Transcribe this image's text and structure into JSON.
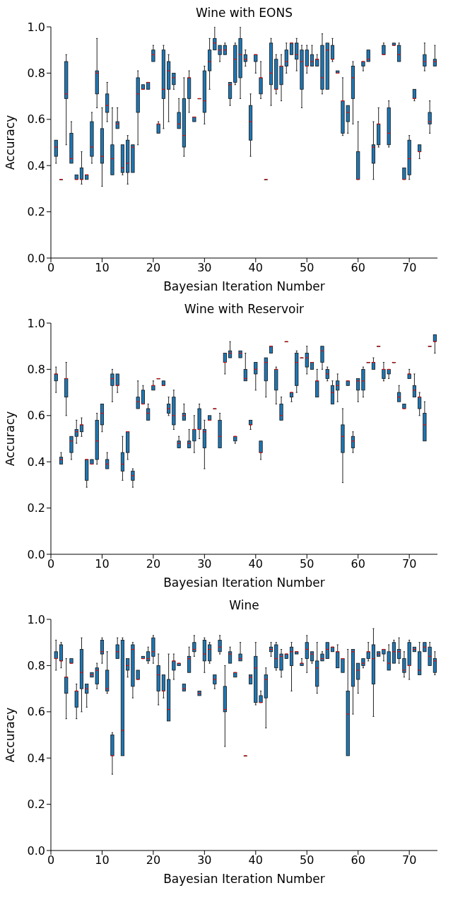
{
  "chart_data": [
    {
      "type": "box",
      "title": "Wine with EONS",
      "xlabel": "Bayesian Iteration Number",
      "ylabel": "Accuracy",
      "color": "#1f77b4",
      "xlim": [
        0,
        75.5
      ],
      "xticks": [
        0,
        10,
        20,
        30,
        40,
        50,
        60,
        70
      ],
      "ylim": [
        0,
        1.0
      ],
      "yticks": [
        {
          "value": 0,
          "label": "0.0"
        },
        {
          "value": 0.2,
          "label": "0.2"
        },
        {
          "value": 0.4,
          "label": "0.4"
        },
        {
          "value": 0.6,
          "label": "0.6"
        },
        {
          "value": 0.8,
          "label": "0.8"
        },
        {
          "value": 1.0,
          "label": "1.0"
        }
      ],
      "x": [
        1,
        2,
        3,
        4,
        5,
        6,
        7,
        8,
        9,
        10,
        11,
        12,
        13,
        14,
        15,
        16,
        17,
        18,
        19,
        20,
        21,
        22,
        23,
        24,
        25,
        26,
        27,
        28,
        29,
        30,
        31,
        32,
        33,
        34,
        35,
        36,
        37,
        38,
        39,
        40,
        41,
        42,
        43,
        44,
        45,
        46,
        47,
        48,
        49,
        50,
        51,
        52,
        53,
        54,
        55,
        56,
        57,
        58,
        59,
        60,
        61,
        62,
        63,
        64,
        65,
        66,
        67,
        68,
        69,
        70,
        71,
        72,
        73,
        74,
        75
      ],
      "boxes": [
        {
          "low": 0.41,
          "q1": 0.44,
          "median": 0.48,
          "q3": 0.51,
          "high": 0.51
        },
        {
          "low": 0.34,
          "q1": 0.34,
          "median": 0.34,
          "q3": 0.34,
          "high": 0.34
        },
        {
          "low": 0.49,
          "q1": 0.69,
          "median": 0.71,
          "q3": 0.85,
          "high": 0.88
        },
        {
          "low": 0.41,
          "q1": 0.41,
          "median": 0.43,
          "q3": 0.54,
          "high": 0.59
        },
        {
          "low": 0.34,
          "q1": 0.34,
          "median": 0.34,
          "q3": 0.36,
          "high": 0.36
        },
        {
          "low": 0.32,
          "q1": 0.34,
          "median": 0.34,
          "q3": 0.39,
          "high": 0.46
        },
        {
          "low": 0.34,
          "q1": 0.34,
          "median": 0.36,
          "q3": 0.36,
          "high": 0.36
        },
        {
          "low": 0.41,
          "q1": 0.44,
          "median": 0.48,
          "q3": 0.59,
          "high": 0.63
        },
        {
          "low": 0.65,
          "q1": 0.71,
          "median": 0.8,
          "q3": 0.81,
          "high": 0.95
        },
        {
          "low": 0.31,
          "q1": 0.41,
          "median": 0.44,
          "q3": 0.56,
          "high": 0.65
        },
        {
          "low": 0.59,
          "q1": 0.63,
          "median": 0.66,
          "q3": 0.71,
          "high": 0.76
        },
        {
          "low": 0.36,
          "q1": 0.36,
          "median": 0.43,
          "q3": 0.49,
          "high": 0.65
        },
        {
          "low": 0.56,
          "q1": 0.56,
          "median": 0.58,
          "q3": 0.59,
          "high": 0.65
        },
        {
          "low": 0.36,
          "q1": 0.37,
          "median": 0.39,
          "q3": 0.49,
          "high": 0.49
        },
        {
          "low": 0.32,
          "q1": 0.37,
          "median": 0.41,
          "q3": 0.51,
          "high": 0.53
        },
        {
          "low": 0.37,
          "q1": 0.37,
          "median": 0.48,
          "q3": 0.49,
          "high": 0.49
        },
        {
          "low": 0.49,
          "q1": 0.63,
          "median": 0.71,
          "q3": 0.78,
          "high": 0.81
        },
        {
          "low": 0.73,
          "q1": 0.73,
          "median": 0.73,
          "q3": 0.75,
          "high": 0.75
        },
        {
          "low": 0.73,
          "q1": 0.73,
          "median": 0.76,
          "q3": 0.76,
          "high": 0.76
        },
        {
          "low": 0.85,
          "q1": 0.85,
          "median": 0.88,
          "q3": 0.9,
          "high": 0.92
        },
        {
          "low": 0.54,
          "q1": 0.54,
          "median": 0.58,
          "q3": 0.58,
          "high": 0.59
        },
        {
          "low": 0.56,
          "q1": 0.69,
          "median": 0.73,
          "q3": 0.9,
          "high": 0.92
        },
        {
          "low": 0.59,
          "q1": 0.73,
          "median": 0.81,
          "q3": 0.85,
          "high": 0.88
        },
        {
          "low": 0.73,
          "q1": 0.75,
          "median": 0.78,
          "q3": 0.8,
          "high": 0.8
        },
        {
          "low": 0.56,
          "q1": 0.56,
          "median": 0.58,
          "q3": 0.63,
          "high": 0.69
        },
        {
          "low": 0.44,
          "q1": 0.48,
          "median": 0.53,
          "q3": 0.69,
          "high": 0.78
        },
        {
          "low": 0.63,
          "q1": 0.69,
          "median": 0.78,
          "q3": 0.78,
          "high": 0.81
        },
        {
          "low": 0.59,
          "q1": 0.59,
          "median": 0.61,
          "q3": 0.61,
          "high": 0.61
        },
        {
          "low": 0.69,
          "q1": 0.69,
          "median": 0.69,
          "q3": 0.69,
          "high": 0.69
        },
        {
          "low": 0.58,
          "q1": 0.63,
          "median": 0.68,
          "q3": 0.81,
          "high": 0.83
        },
        {
          "low": 0.73,
          "q1": 0.81,
          "median": 0.85,
          "q3": 0.9,
          "high": 0.95
        },
        {
          "low": 0.9,
          "q1": 0.9,
          "median": 0.93,
          "q3": 0.95,
          "high": 1.0
        },
        {
          "low": 0.85,
          "q1": 0.88,
          "median": 0.9,
          "q3": 0.92,
          "high": 0.92
        },
        {
          "low": 0.88,
          "q1": 0.88,
          "median": 0.9,
          "q3": 0.92,
          "high": 0.93
        },
        {
          "low": 0.66,
          "q1": 0.69,
          "median": 0.75,
          "q3": 0.76,
          "high": 0.76
        },
        {
          "low": 0.75,
          "q1": 0.76,
          "median": 0.86,
          "q3": 0.92,
          "high": 0.93
        },
        {
          "low": 0.69,
          "q1": 0.78,
          "median": 0.88,
          "q3": 0.95,
          "high": 1.0
        },
        {
          "low": 0.83,
          "q1": 0.85,
          "median": 0.86,
          "q3": 0.88,
          "high": 0.9
        },
        {
          "low": 0.44,
          "q1": 0.51,
          "median": 0.59,
          "q3": 0.66,
          "high": 0.71
        },
        {
          "low": 0.8,
          "q1": 0.85,
          "median": 0.88,
          "q3": 0.88,
          "high": 0.88
        },
        {
          "low": 0.69,
          "q1": 0.71,
          "median": 0.78,
          "q3": 0.78,
          "high": 0.85
        },
        {
          "low": 0.34,
          "q1": 0.34,
          "median": 0.34,
          "q3": 0.34,
          "high": 0.34
        },
        {
          "low": 0.66,
          "q1": 0.75,
          "median": 0.8,
          "q3": 0.93,
          "high": 0.95
        },
        {
          "low": 0.71,
          "q1": 0.73,
          "median": 0.73,
          "q3": 0.86,
          "high": 0.88
        },
        {
          "low": 0.68,
          "q1": 0.75,
          "median": 0.83,
          "q3": 0.83,
          "high": 0.88
        },
        {
          "low": 0.8,
          "q1": 0.83,
          "median": 0.85,
          "q3": 0.9,
          "high": 0.93
        },
        {
          "low": 0.88,
          "q1": 0.88,
          "median": 0.93,
          "q3": 0.93,
          "high": 0.93
        },
        {
          "low": 0.81,
          "q1": 0.86,
          "median": 0.88,
          "q3": 0.93,
          "high": 0.95
        },
        {
          "low": 0.65,
          "q1": 0.73,
          "median": 0.85,
          "q3": 0.9,
          "high": 0.92
        },
        {
          "low": 0.8,
          "q1": 0.83,
          "median": 0.83,
          "q3": 0.9,
          "high": 0.92
        },
        {
          "low": 0.83,
          "q1": 0.83,
          "median": 0.85,
          "q3": 0.88,
          "high": 0.92
        },
        {
          "low": 0.83,
          "q1": 0.83,
          "median": 0.86,
          "q3": 0.86,
          "high": 0.88
        },
        {
          "low": 0.71,
          "q1": 0.73,
          "median": 0.78,
          "q3": 0.92,
          "high": 0.97
        },
        {
          "low": 0.73,
          "q1": 0.73,
          "median": 0.9,
          "q3": 0.93,
          "high": 0.93
        },
        {
          "low": 0.85,
          "q1": 0.86,
          "median": 0.86,
          "q3": 0.92,
          "high": 0.95
        },
        {
          "low": 0.8,
          "q1": 0.8,
          "median": 0.8,
          "q3": 0.81,
          "high": 0.81
        },
        {
          "low": 0.53,
          "q1": 0.54,
          "median": 0.68,
          "q3": 0.68,
          "high": 0.78
        },
        {
          "low": 0.54,
          "q1": 0.59,
          "median": 0.63,
          "q3": 0.66,
          "high": 0.66
        },
        {
          "low": 0.58,
          "q1": 0.69,
          "median": 0.78,
          "q3": 0.83,
          "high": 0.85
        },
        {
          "low": 0.34,
          "q1": 0.34,
          "median": 0.34,
          "q3": 0.46,
          "high": 0.59
        },
        {
          "low": 0.81,
          "q1": 0.83,
          "median": 0.85,
          "q3": 0.85,
          "high": 0.85
        },
        {
          "low": 0.85,
          "q1": 0.85,
          "median": 0.86,
          "q3": 0.9,
          "high": 0.9
        },
        {
          "low": 0.34,
          "q1": 0.41,
          "median": 0.48,
          "q3": 0.49,
          "high": 0.59
        },
        {
          "low": 0.48,
          "q1": 0.49,
          "median": 0.58,
          "q3": 0.58,
          "high": 0.65
        },
        {
          "low": 0.88,
          "q1": 0.88,
          "median": 0.88,
          "q3": 0.92,
          "high": 0.93
        },
        {
          "low": 0.48,
          "q1": 0.49,
          "median": 0.54,
          "q3": 0.65,
          "high": 0.68
        },
        {
          "low": 0.92,
          "q1": 0.92,
          "median": 0.92,
          "q3": 0.93,
          "high": 0.93
        },
        {
          "low": 0.85,
          "q1": 0.85,
          "median": 0.88,
          "q3": 0.92,
          "high": 0.93
        },
        {
          "low": 0.34,
          "q1": 0.34,
          "median": 0.34,
          "q3": 0.39,
          "high": 0.39
        },
        {
          "low": 0.34,
          "q1": 0.36,
          "median": 0.43,
          "q3": 0.51,
          "high": 0.53
        },
        {
          "low": 0.68,
          "q1": 0.69,
          "median": 0.69,
          "q3": 0.73,
          "high": 0.73
        },
        {
          "low": 0.43,
          "q1": 0.46,
          "median": 0.46,
          "q3": 0.49,
          "high": 0.49
        },
        {
          "low": 0.81,
          "q1": 0.83,
          "median": 0.85,
          "q3": 0.88,
          "high": 0.93
        },
        {
          "low": 0.54,
          "q1": 0.58,
          "median": 0.59,
          "q3": 0.63,
          "high": 0.68
        },
        {
          "low": 0.83,
          "q1": 0.83,
          "median": 0.85,
          "q3": 0.86,
          "high": 0.92
        }
      ]
    },
    {
      "type": "box",
      "title": "Wine with Reservoir",
      "xlabel": "Bayesian Iteration Number",
      "ylabel": "Accuracy",
      "color": "#1f77b4",
      "xlim": [
        0,
        75.5
      ],
      "xticks": [
        0,
        10,
        20,
        30,
        40,
        50,
        60,
        70
      ],
      "ylim": [
        0,
        1.0
      ],
      "yticks": [
        {
          "value": 0,
          "label": "0.0"
        },
        {
          "value": 0.2,
          "label": "0.2"
        },
        {
          "value": 0.4,
          "label": "0.4"
        },
        {
          "value": 0.6,
          "label": "0.6"
        },
        {
          "value": 0.8,
          "label": "0.8"
        },
        {
          "value": 1.0,
          "label": "1.0"
        }
      ],
      "x": [
        1,
        2,
        3,
        4,
        5,
        6,
        7,
        8,
        9,
        10,
        11,
        12,
        13,
        14,
        15,
        16,
        17,
        18,
        19,
        20,
        21,
        22,
        23,
        24,
        25,
        26,
        27,
        28,
        29,
        30,
        31,
        32,
        33,
        34,
        35,
        36,
        37,
        38,
        39,
        40,
        41,
        42,
        43,
        44,
        45,
        46,
        47,
        48,
        49,
        50,
        51,
        52,
        53,
        54,
        55,
        56,
        57,
        58,
        59,
        60,
        61,
        62,
        63,
        64,
        65,
        66,
        67,
        68,
        69,
        70,
        71,
        72,
        73,
        74,
        75
      ],
      "boxes": [
        {
          "low": 0.7,
          "q1": 0.75,
          "median": 0.78,
          "q3": 0.78,
          "high": 0.81
        },
        {
          "low": 0.39,
          "q1": 0.39,
          "median": 0.41,
          "q3": 0.42,
          "high": 0.44
        },
        {
          "low": 0.6,
          "q1": 0.68,
          "median": 0.76,
          "q3": 0.76,
          "high": 0.83
        },
        {
          "low": 0.41,
          "q1": 0.44,
          "median": 0.49,
          "q3": 0.51,
          "high": 0.51
        },
        {
          "low": 0.48,
          "q1": 0.51,
          "median": 0.53,
          "q3": 0.54,
          "high": 0.58
        },
        {
          "low": 0.51,
          "q1": 0.53,
          "median": 0.56,
          "q3": 0.56,
          "high": 0.59
        },
        {
          "low": 0.29,
          "q1": 0.32,
          "median": 0.41,
          "q3": 0.41,
          "high": 0.41
        },
        {
          "low": 0.39,
          "q1": 0.39,
          "median": 0.39,
          "q3": 0.41,
          "high": 0.41
        },
        {
          "low": 0.39,
          "q1": 0.41,
          "median": 0.49,
          "q3": 0.58,
          "high": 0.61
        },
        {
          "low": 0.53,
          "q1": 0.56,
          "median": 0.61,
          "q3": 0.65,
          "high": 0.65
        },
        {
          "low": 0.37,
          "q1": 0.37,
          "median": 0.39,
          "q3": 0.41,
          "high": 0.44
        },
        {
          "low": 0.66,
          "q1": 0.73,
          "median": 0.76,
          "q3": 0.78,
          "high": 0.8
        },
        {
          "low": 0.7,
          "q1": 0.73,
          "median": 0.73,
          "q3": 0.78,
          "high": 0.78
        },
        {
          "low": 0.32,
          "q1": 0.36,
          "median": 0.39,
          "q3": 0.44,
          "high": 0.51
        },
        {
          "low": 0.41,
          "q1": 0.44,
          "median": 0.53,
          "q3": 0.53,
          "high": 0.53
        },
        {
          "low": 0.29,
          "q1": 0.32,
          "median": 0.34,
          "q3": 0.36,
          "high": 0.37
        },
        {
          "low": 0.63,
          "q1": 0.63,
          "median": 0.66,
          "q3": 0.68,
          "high": 0.75
        },
        {
          "low": 0.65,
          "q1": 0.65,
          "median": 0.65,
          "q3": 0.71,
          "high": 0.73
        },
        {
          "low": 0.58,
          "q1": 0.58,
          "median": 0.61,
          "q3": 0.63,
          "high": 0.65
        },
        {
          "low": 0.71,
          "q1": 0.71,
          "median": 0.73,
          "q3": 0.73,
          "high": 0.75
        },
        {
          "low": 0.76,
          "q1": 0.76,
          "median": 0.76,
          "q3": 0.76,
          "high": 0.76
        },
        {
          "low": 0.73,
          "q1": 0.73,
          "median": 0.73,
          "q3": 0.75,
          "high": 0.75
        },
        {
          "low": 0.6,
          "q1": 0.61,
          "median": 0.63,
          "q3": 0.65,
          "high": 0.68
        },
        {
          "low": 0.54,
          "q1": 0.56,
          "median": 0.6,
          "q3": 0.68,
          "high": 0.71
        },
        {
          "low": 0.46,
          "q1": 0.46,
          "median": 0.48,
          "q3": 0.49,
          "high": 0.51
        },
        {
          "low": 0.58,
          "q1": 0.58,
          "median": 0.6,
          "q3": 0.61,
          "high": 0.65
        },
        {
          "low": 0.46,
          "q1": 0.46,
          "median": 0.48,
          "q3": 0.49,
          "high": 0.54
        },
        {
          "low": 0.44,
          "q1": 0.49,
          "median": 0.54,
          "q3": 0.54,
          "high": 0.6
        },
        {
          "low": 0.5,
          "q1": 0.54,
          "median": 0.54,
          "q3": 0.63,
          "high": 0.65
        },
        {
          "low": 0.37,
          "q1": 0.46,
          "median": 0.53,
          "q3": 0.54,
          "high": 0.58
        },
        {
          "low": 0.58,
          "q1": 0.58,
          "median": 0.58,
          "q3": 0.6,
          "high": 0.6
        },
        {
          "low": 0.63,
          "q1": 0.63,
          "median": 0.63,
          "q3": 0.63,
          "high": 0.63
        },
        {
          "low": 0.46,
          "q1": 0.46,
          "median": 0.51,
          "q3": 0.58,
          "high": 0.61
        },
        {
          "low": 0.78,
          "q1": 0.83,
          "median": 0.83,
          "q3": 0.87,
          "high": 0.87
        },
        {
          "low": 0.85,
          "q1": 0.85,
          "median": 0.87,
          "q3": 0.88,
          "high": 0.92
        },
        {
          "low": 0.48,
          "q1": 0.49,
          "median": 0.51,
          "q3": 0.51,
          "high": 0.51
        },
        {
          "low": 0.85,
          "q1": 0.85,
          "median": 0.87,
          "q3": 0.88,
          "high": 0.88
        },
        {
          "low": 0.75,
          "q1": 0.75,
          "median": 0.76,
          "q3": 0.8,
          "high": 0.87
        },
        {
          "low": 0.54,
          "q1": 0.56,
          "median": 0.56,
          "q3": 0.58,
          "high": 0.58
        },
        {
          "low": 0.71,
          "q1": 0.78,
          "median": 0.8,
          "q3": 0.83,
          "high": 0.83
        },
        {
          "low": 0.41,
          "q1": 0.44,
          "median": 0.44,
          "q3": 0.49,
          "high": 0.49
        },
        {
          "low": 0.68,
          "q1": 0.75,
          "median": 0.83,
          "q3": 0.85,
          "high": 0.85
        },
        {
          "low": 0.87,
          "q1": 0.87,
          "median": 0.9,
          "q3": 0.9,
          "high": 0.9
        },
        {
          "low": 0.65,
          "q1": 0.71,
          "median": 0.8,
          "q3": 0.8,
          "high": 0.81
        },
        {
          "low": 0.58,
          "q1": 0.58,
          "median": 0.6,
          "q3": 0.65,
          "high": 0.68
        },
        {
          "low": 0.92,
          "q1": 0.92,
          "median": 0.92,
          "q3": 0.92,
          "high": 0.92
        },
        {
          "low": 0.66,
          "q1": 0.68,
          "median": 0.7,
          "q3": 0.7,
          "high": 0.7
        },
        {
          "low": 0.7,
          "q1": 0.73,
          "median": 0.83,
          "q3": 0.87,
          "high": 0.88
        },
        {
          "low": 0.85,
          "q1": 0.85,
          "median": 0.85,
          "q3": 0.85,
          "high": 0.85
        },
        {
          "low": 0.78,
          "q1": 0.81,
          "median": 0.85,
          "q3": 0.87,
          "high": 0.9
        },
        {
          "low": 0.8,
          "q1": 0.8,
          "median": 0.83,
          "q3": 0.83,
          "high": 0.83
        },
        {
          "low": 0.68,
          "q1": 0.68,
          "median": 0.75,
          "q3": 0.75,
          "high": 0.8
        },
        {
          "low": 0.8,
          "q1": 0.83,
          "median": 0.88,
          "q3": 0.9,
          "high": 0.9
        },
        {
          "low": 0.75,
          "q1": 0.76,
          "median": 0.78,
          "q3": 0.8,
          "high": 0.81
        },
        {
          "low": 0.65,
          "q1": 0.65,
          "median": 0.7,
          "q3": 0.73,
          "high": 0.75
        },
        {
          "low": 0.66,
          "q1": 0.71,
          "median": 0.73,
          "q3": 0.75,
          "high": 0.78
        },
        {
          "low": 0.31,
          "q1": 0.44,
          "median": 0.51,
          "q3": 0.56,
          "high": 0.63
        },
        {
          "low": 0.73,
          "q1": 0.73,
          "median": 0.75,
          "q3": 0.75,
          "high": 0.75
        },
        {
          "low": 0.44,
          "q1": 0.46,
          "median": 0.49,
          "q3": 0.51,
          "high": 0.53
        },
        {
          "low": 0.66,
          "q1": 0.71,
          "median": 0.75,
          "q3": 0.76,
          "high": 0.76
        },
        {
          "low": 0.68,
          "q1": 0.71,
          "median": 0.75,
          "q3": 0.8,
          "high": 0.81
        },
        {
          "low": 0.83,
          "q1": 0.83,
          "median": 0.83,
          "q3": 0.83,
          "high": 0.83
        },
        {
          "low": 0.8,
          "q1": 0.8,
          "median": 0.83,
          "q3": 0.83,
          "high": 0.85
        },
        {
          "low": 0.9,
          "q1": 0.9,
          "median": 0.9,
          "q3": 0.9,
          "high": 0.9
        },
        {
          "low": 0.75,
          "q1": 0.76,
          "median": 0.8,
          "q3": 0.8,
          "high": 0.83
        },
        {
          "low": 0.76,
          "q1": 0.78,
          "median": 0.8,
          "q3": 0.8,
          "high": 0.8
        },
        {
          "low": 0.83,
          "q1": 0.83,
          "median": 0.83,
          "q3": 0.83,
          "high": 0.83
        },
        {
          "low": 0.66,
          "q1": 0.66,
          "median": 0.68,
          "q3": 0.7,
          "high": 0.73
        },
        {
          "low": 0.63,
          "q1": 0.63,
          "median": 0.63,
          "q3": 0.65,
          "high": 0.65
        },
        {
          "low": 0.76,
          "q1": 0.76,
          "median": 0.78,
          "q3": 0.78,
          "high": 0.8
        },
        {
          "low": 0.68,
          "q1": 0.68,
          "median": 0.71,
          "q3": 0.73,
          "high": 0.78
        },
        {
          "low": 0.6,
          "q1": 0.63,
          "median": 0.68,
          "q3": 0.68,
          "high": 0.7
        },
        {
          "low": 0.49,
          "q1": 0.49,
          "median": 0.56,
          "q3": 0.61,
          "high": 0.66
        },
        {
          "low": 0.9,
          "q1": 0.9,
          "median": 0.9,
          "q3": 0.9,
          "high": 0.9
        },
        {
          "low": 0.87,
          "q1": 0.92,
          "median": 0.92,
          "q3": 0.95,
          "high": 0.95
        }
      ]
    },
    {
      "type": "box",
      "title": "Wine",
      "xlabel": "Bayesian Iteration Number",
      "ylabel": "Accuracy",
      "color": "#1f77b4",
      "xlim": [
        0,
        75.5
      ],
      "xticks": [
        0,
        10,
        20,
        30,
        40,
        50,
        60,
        70
      ],
      "ylim": [
        0,
        1.0
      ],
      "yticks": [
        {
          "value": 0,
          "label": "0.0"
        },
        {
          "value": 0.2,
          "label": "0.2"
        },
        {
          "value": 0.4,
          "label": "0.4"
        },
        {
          "value": 0.6,
          "label": "0.6"
        },
        {
          "value": 0.8,
          "label": "0.8"
        },
        {
          "value": 1.0,
          "label": "1.0"
        }
      ],
      "x": [
        1,
        2,
        3,
        4,
        5,
        6,
        7,
        8,
        9,
        10,
        11,
        12,
        13,
        14,
        15,
        16,
        17,
        18,
        19,
        20,
        21,
        22,
        23,
        24,
        25,
        26,
        27,
        28,
        29,
        30,
        31,
        32,
        33,
        34,
        35,
        36,
        37,
        38,
        39,
        40,
        41,
        42,
        43,
        44,
        45,
        46,
        47,
        48,
        49,
        50,
        51,
        52,
        53,
        54,
        55,
        56,
        57,
        58,
        59,
        60,
        61,
        62,
        63,
        64,
        65,
        66,
        67,
        68,
        69,
        70,
        71,
        72,
        73,
        74,
        75
      ],
      "boxes": [
        {
          "low": 0.78,
          "q1": 0.83,
          "median": 0.83,
          "q3": 0.86,
          "high": 0.91
        },
        {
          "low": 0.79,
          "q1": 0.82,
          "median": 0.82,
          "q3": 0.89,
          "high": 0.9
        },
        {
          "low": 0.57,
          "q1": 0.68,
          "median": 0.75,
          "q3": 0.75,
          "high": 0.83
        },
        {
          "low": 0.81,
          "q1": 0.81,
          "median": 0.81,
          "q3": 0.83,
          "high": 0.83
        },
        {
          "low": 0.57,
          "q1": 0.62,
          "median": 0.69,
          "q3": 0.69,
          "high": 0.72
        },
        {
          "low": 0.6,
          "q1": 0.7,
          "median": 0.77,
          "q3": 0.87,
          "high": 0.92
        },
        {
          "low": 0.62,
          "q1": 0.68,
          "median": 0.7,
          "q3": 0.72,
          "high": 0.72
        },
        {
          "low": 0.75,
          "q1": 0.75,
          "median": 0.76,
          "q3": 0.77,
          "high": 0.77
        },
        {
          "low": 0.7,
          "q1": 0.72,
          "median": 0.78,
          "q3": 0.79,
          "high": 0.81
        },
        {
          "low": 0.81,
          "q1": 0.85,
          "median": 0.86,
          "q3": 0.91,
          "high": 0.92
        },
        {
          "low": 0.68,
          "q1": 0.69,
          "median": 0.7,
          "q3": 0.78,
          "high": 0.86
        },
        {
          "low": 0.33,
          "q1": 0.41,
          "median": 0.41,
          "q3": 0.5,
          "high": 0.51
        },
        {
          "low": 0.83,
          "q1": 0.83,
          "median": 0.86,
          "q3": 0.89,
          "high": 0.92
        },
        {
          "low": 0.41,
          "q1": 0.41,
          "median": 0.52,
          "q3": 0.91,
          "high": 0.92
        },
        {
          "low": 0.75,
          "q1": 0.78,
          "median": 0.8,
          "q3": 0.83,
          "high": 0.83
        },
        {
          "low": 0.66,
          "q1": 0.71,
          "median": 0.87,
          "q3": 0.89,
          "high": 0.9
        },
        {
          "low": 0.74,
          "q1": 0.74,
          "median": 0.74,
          "q3": 0.78,
          "high": 0.78
        },
        {
          "low": 0.83,
          "q1": 0.83,
          "median": 0.83,
          "q3": 0.84,
          "high": 0.84
        },
        {
          "low": 0.81,
          "q1": 0.82,
          "median": 0.83,
          "q3": 0.86,
          "high": 0.88
        },
        {
          "low": 0.81,
          "q1": 0.84,
          "median": 0.86,
          "q3": 0.92,
          "high": 0.93
        },
        {
          "low": 0.63,
          "q1": 0.69,
          "median": 0.76,
          "q3": 0.8,
          "high": 0.85
        },
        {
          "low": 0.66,
          "q1": 0.69,
          "median": 0.69,
          "q3": 0.76,
          "high": 0.76
        },
        {
          "low": 0.56,
          "q1": 0.56,
          "median": 0.61,
          "q3": 0.74,
          "high": 0.85
        },
        {
          "low": 0.74,
          "q1": 0.78,
          "median": 0.82,
          "q3": 0.82,
          "high": 0.85
        },
        {
          "low": 0.8,
          "q1": 0.8,
          "median": 0.81,
          "q3": 0.81,
          "high": 0.81
        },
        {
          "low": 0.69,
          "q1": 0.69,
          "median": 0.7,
          "q3": 0.72,
          "high": 0.72
        },
        {
          "low": 0.77,
          "q1": 0.77,
          "median": 0.83,
          "q3": 0.84,
          "high": 0.88
        },
        {
          "low": 0.84,
          "q1": 0.86,
          "median": 0.87,
          "q3": 0.9,
          "high": 0.93
        },
        {
          "low": 0.67,
          "q1": 0.67,
          "median": 0.68,
          "q3": 0.69,
          "high": 0.69
        },
        {
          "low": 0.77,
          "q1": 0.82,
          "median": 0.85,
          "q3": 0.91,
          "high": 0.92
        },
        {
          "low": 0.81,
          "q1": 0.82,
          "median": 0.87,
          "q3": 0.89,
          "high": 0.9
        },
        {
          "low": 0.7,
          "q1": 0.72,
          "median": 0.74,
          "q3": 0.76,
          "high": 0.76
        },
        {
          "low": 0.85,
          "q1": 0.86,
          "median": 0.88,
          "q3": 0.91,
          "high": 0.93
        },
        {
          "low": 0.45,
          "q1": 0.6,
          "median": 0.61,
          "q3": 0.71,
          "high": 0.8
        },
        {
          "low": 0.81,
          "q1": 0.81,
          "median": 0.85,
          "q3": 0.86,
          "high": 0.88
        },
        {
          "low": 0.75,
          "q1": 0.75,
          "median": 0.77,
          "q3": 0.77,
          "high": 0.77
        },
        {
          "low": 0.82,
          "q1": 0.82,
          "median": 0.83,
          "q3": 0.85,
          "high": 0.9
        },
        {
          "low": 0.41,
          "q1": 0.41,
          "median": 0.41,
          "q3": 0.41,
          "high": 0.41
        },
        {
          "low": 0.72,
          "q1": 0.72,
          "median": 0.75,
          "q3": 0.76,
          "high": 0.76
        },
        {
          "low": 0.63,
          "q1": 0.64,
          "median": 0.79,
          "q3": 0.84,
          "high": 0.9
        },
        {
          "low": 0.64,
          "q1": 0.64,
          "median": 0.64,
          "q3": 0.67,
          "high": 0.69
        },
        {
          "low": 0.53,
          "q1": 0.66,
          "median": 0.74,
          "q3": 0.76,
          "high": 0.79
        },
        {
          "low": 0.84,
          "q1": 0.86,
          "median": 0.87,
          "q3": 0.88,
          "high": 0.9
        },
        {
          "low": 0.78,
          "q1": 0.79,
          "median": 0.83,
          "q3": 0.89,
          "high": 0.9
        },
        {
          "low": 0.75,
          "q1": 0.78,
          "median": 0.84,
          "q3": 0.85,
          "high": 0.87
        },
        {
          "low": 0.83,
          "q1": 0.83,
          "median": 0.85,
          "q3": 0.85,
          "high": 0.85
        },
        {
          "low": 0.69,
          "q1": 0.8,
          "median": 0.86,
          "q3": 0.88,
          "high": 0.9
        },
        {
          "low": 0.85,
          "q1": 0.85,
          "median": 0.86,
          "q3": 0.86,
          "high": 0.86
        },
        {
          "low": 0.8,
          "q1": 0.8,
          "median": 0.81,
          "q3": 0.81,
          "high": 0.83
        },
        {
          "low": 0.77,
          "q1": 0.83,
          "median": 0.87,
          "q3": 0.9,
          "high": 0.93
        },
        {
          "low": 0.81,
          "q1": 0.82,
          "median": 0.85,
          "q3": 0.86,
          "high": 0.86
        },
        {
          "low": 0.68,
          "q1": 0.71,
          "median": 0.79,
          "q3": 0.82,
          "high": 0.9
        },
        {
          "low": 0.82,
          "q1": 0.82,
          "median": 0.83,
          "q3": 0.85,
          "high": 0.86
        },
        {
          "low": 0.83,
          "q1": 0.83,
          "median": 0.87,
          "q3": 0.9,
          "high": 0.9
        },
        {
          "low": 0.86,
          "q1": 0.86,
          "median": 0.88,
          "q3": 0.88,
          "high": 0.88
        },
        {
          "low": 0.79,
          "q1": 0.79,
          "median": 0.86,
          "q3": 0.86,
          "high": 0.89
        },
        {
          "low": 0.77,
          "q1": 0.77,
          "median": 0.83,
          "q3": 0.83,
          "high": 0.83
        },
        {
          "low": 0.41,
          "q1": 0.41,
          "median": 0.59,
          "q3": 0.69,
          "high": 0.87
        },
        {
          "low": 0.59,
          "q1": 0.71,
          "median": 0.86,
          "q3": 0.87,
          "high": 0.87
        },
        {
          "low": 0.68,
          "q1": 0.74,
          "median": 0.78,
          "q3": 0.81,
          "high": 0.81
        },
        {
          "low": 0.79,
          "q1": 0.8,
          "median": 0.81,
          "q3": 0.83,
          "high": 0.83
        },
        {
          "low": 0.82,
          "q1": 0.83,
          "median": 0.86,
          "q3": 0.86,
          "high": 0.9
        },
        {
          "low": 0.58,
          "q1": 0.72,
          "median": 0.83,
          "q3": 0.89,
          "high": 0.96
        },
        {
          "low": 0.84,
          "q1": 0.84,
          "median": 0.85,
          "q3": 0.86,
          "high": 0.86
        },
        {
          "low": 0.82,
          "q1": 0.85,
          "median": 0.87,
          "q3": 0.87,
          "high": 0.87
        },
        {
          "low": 0.78,
          "q1": 0.78,
          "median": 0.81,
          "q3": 0.86,
          "high": 0.89
        },
        {
          "low": 0.81,
          "q1": 0.81,
          "median": 0.86,
          "q3": 0.9,
          "high": 0.91
        },
        {
          "low": 0.81,
          "q1": 0.83,
          "median": 0.86,
          "q3": 0.87,
          "high": 0.92
        },
        {
          "low": 0.75,
          "q1": 0.77,
          "median": 0.78,
          "q3": 0.83,
          "high": 0.86
        },
        {
          "low": 0.74,
          "q1": 0.8,
          "median": 0.8,
          "q3": 0.9,
          "high": 0.91
        },
        {
          "low": 0.86,
          "q1": 0.86,
          "median": 0.87,
          "q3": 0.88,
          "high": 0.88
        },
        {
          "low": 0.76,
          "q1": 0.76,
          "median": 0.78,
          "q3": 0.86,
          "high": 0.9
        },
        {
          "low": 0.86,
          "q1": 0.86,
          "median": 0.88,
          "q3": 0.9,
          "high": 0.9
        },
        {
          "low": 0.8,
          "q1": 0.8,
          "median": 0.84,
          "q3": 0.88,
          "high": 0.9
        },
        {
          "low": 0.76,
          "q1": 0.77,
          "median": 0.82,
          "q3": 0.83,
          "high": 0.86
        }
      ]
    }
  ]
}
